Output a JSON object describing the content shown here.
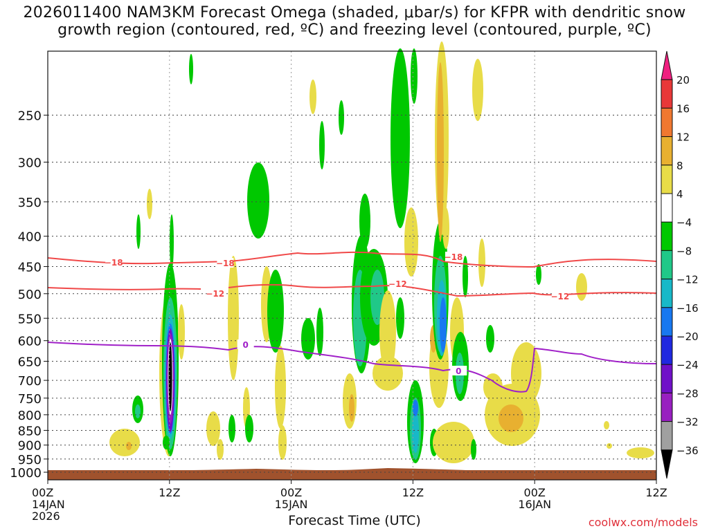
{
  "title_lines": [
    "2026011400 NAM3KM Forecast Omega (shaded, μbar/s) for KFPR with dendritic snow",
    "growth region (contoured, red, ºC) and freezing level (contoured, purple, ºC)"
  ],
  "credit": "coolwx.com/models",
  "chart_data": {
    "type": "heatmap",
    "xlabel": "Forecast Time (UTC)",
    "x_ticks": [
      {
        "hour": 0,
        "lines": [
          "00Z",
          "14JAN",
          "2026"
        ]
      },
      {
        "hour": 12,
        "lines": [
          "12Z"
        ]
      },
      {
        "hour": 24,
        "lines": [
          "00Z",
          "15JAN"
        ]
      },
      {
        "hour": 36,
        "lines": [
          "12Z"
        ]
      },
      {
        "hour": 48,
        "lines": [
          "00Z",
          "16JAN"
        ]
      },
      {
        "hour": 60,
        "lines": [
          "12Z"
        ]
      }
    ],
    "x_range": [
      0,
      60
    ],
    "y_axis": {
      "scale": "log-pressure",
      "range_hpa": [
        1030,
        195
      ],
      "reversed": true
    },
    "y_ticks": [
      250,
      300,
      350,
      400,
      450,
      500,
      550,
      600,
      650,
      700,
      750,
      800,
      850,
      900,
      950,
      1000
    ],
    "colorbar": {
      "labels": [
        "20",
        "16",
        "12",
        "8",
        "4",
        "−4",
        "−8",
        "−12",
        "−16",
        "−20",
        "−24",
        "−28",
        "−32",
        "−36"
      ],
      "colors": [
        "#f02080",
        "#e83838",
        "#f07830",
        "#e8b030",
        "#e8dc48",
        "#ffffff",
        "#00c800",
        "#20c888",
        "#18b8c8",
        "#1878f0",
        "#2028e0",
        "#7010c8",
        "#9820c0",
        "#a0a0a0",
        "#000000"
      ]
    },
    "contours": [
      {
        "label": "−18",
        "color": "#f04848",
        "label_at": [
          6.5,
          40,
          17.5
        ]
      },
      {
        "label": "−12",
        "color": "#f04848",
        "label_at": [
          16.5,
          34.5,
          50.5
        ]
      },
      {
        "label": "0",
        "color": "#a020c8",
        "label_at": [
          19.5,
          40.5
        ]
      }
    ],
    "ground_color": "#a0522d"
  }
}
